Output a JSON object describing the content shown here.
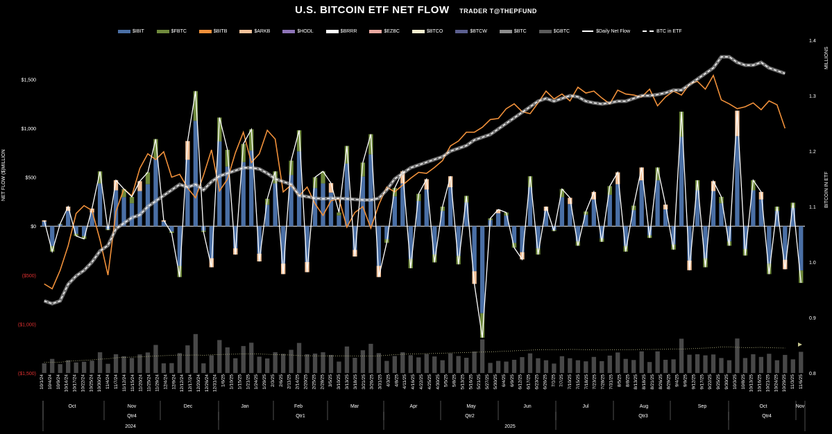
{
  "chart_data": {
    "type": "bar",
    "title": "U.S. BITCOIN ETF NET FLOW",
    "subtitle": "TRADER T@THEPFUND",
    "ylabel": "NET FLOW ($)MILLION",
    "y2label": "BITCOIN IN ETF",
    "y2unit": "MILLIONS",
    "ylim": [
      -1500,
      1900
    ],
    "y2lim": [
      0.8,
      1.4
    ],
    "yticks": [
      "$1,500",
      "$1,000",
      "$500",
      "$0",
      "($500)",
      "($1,000)",
      "($1,500)"
    ],
    "ytick_values": [
      1500,
      1000,
      500,
      0,
      -500,
      -1000,
      -1500
    ],
    "y2ticks": [
      "1.4",
      "1.3",
      "1.2",
      "1.1",
      "1.0",
      "0.9",
      "0.8"
    ],
    "y2tick_values": [
      1.4,
      1.3,
      1.2,
      1.1,
      1.0,
      0.9,
      0.8
    ],
    "legend": [
      "$IBIT",
      "$FBTC",
      "$BITB",
      "$ARKB",
      "$HODL",
      "$BRRR",
      "$EZBC",
      "$BTCO",
      "$BTCW",
      "$BTC",
      "$GBTC",
      "$Daily Net Flow",
      "BTC in ETF"
    ],
    "legend_colors": [
      "#4a6fa5",
      "#6f8a3c",
      "#f0903a",
      "#f3c29a",
      "#8e74b8",
      "#ffffff",
      "#e8a8a0",
      "#f7f0d0",
      "#5b5f8f",
      "#8c8c8c",
      "#5a5a5a",
      "#ffffff",
      "#ffffff"
    ],
    "legend_placement": "top",
    "date_labels": [
      "10/1/24",
      "10/4/24",
      "10/9/24",
      "10/14/24",
      "10/17/24",
      "10/22/24",
      "10/25/24",
      "10/30/24",
      "11/4/24",
      "11/7/24",
      "11/12/24",
      "11/15/24",
      "11/20/24",
      "11/25/24",
      "11/29/24",
      "12/4/24",
      "12/9/24",
      "12/12/24",
      "12/17/24",
      "12/20/24",
      "12/26/24",
      "12/31/24",
      "1/6/25",
      "1/10/25",
      "1/15/25",
      "1/21/25",
      "1/24/25",
      "1/29/25",
      "2/3/25",
      "2/6/25",
      "2/11/25",
      "2/14/25",
      "2/20/25",
      "2/25/25",
      "2/28/25",
      "3/5/25",
      "3/10/25",
      "3/13/25",
      "3/18/25",
      "3/21/25",
      "3/26/25",
      "3/31/25",
      "4/3/25",
      "4/8/25",
      "4/11/25",
      "4/16/25",
      "4/22/25",
      "4/25/25",
      "4/30/25",
      "5/5/25",
      "5/8/25",
      "5/13/25",
      "5/16/25",
      "5/21/25",
      "5/27/25",
      "5/30/25",
      "6/4/25",
      "6/9/25",
      "6/12/25",
      "6/17/25",
      "6/23/25",
      "6/26/25",
      "7/1/25",
      "7/7/25",
      "7/10/25",
      "7/15/25",
      "7/18/25",
      "7/23/25",
      "7/28/25",
      "7/31/25",
      "8/5/25",
      "8/8/25",
      "8/13/25",
      "8/18/25",
      "8/21/25",
      "8/26/25",
      "8/29/25",
      "9/4/25",
      "9/9/25",
      "9/12/25",
      "9/17/25",
      "9/22/25",
      "9/25/25",
      "9/30/25",
      "10/3/25",
      "10/8/25",
      "10/13/25",
      "10/16/25",
      "10/21/25",
      "10/24/25",
      "10/29/25",
      "11/3/25",
      "11/6/25"
    ],
    "months": [
      "Oct",
      "Nov",
      "Dec",
      "Jan",
      "Feb",
      "Mar",
      "Apr",
      "May",
      "Jun",
      "Jul",
      "Aug",
      "Sep",
      "Oct",
      "Nov"
    ],
    "quarters": [
      "Qtr4",
      "Qtr1",
      "Qtr2",
      "Qtr3",
      "Qtr4"
    ],
    "years": [
      "2024",
      "2025"
    ],
    "series": [
      {
        "name": "$Daily Net Flow",
        "values": [
          60,
          -260,
          25,
          200,
          -100,
          -130,
          180,
          560,
          -40,
          470,
          380,
          300,
          460,
          550,
          890,
          60,
          -70,
          -520,
          870,
          1380,
          -60,
          -420,
          1110,
          780,
          -290,
          840,
          990,
          -360,
          280,
          560,
          -490,
          670,
          980,
          -470,
          500,
          560,
          440,
          140,
          820,
          -310,
          650,
          940,
          -520,
          -170,
          390,
          560,
          -430,
          330,
          480,
          -370,
          200,
          510,
          -390,
          310,
          -590,
          -1140,
          80,
          170,
          140,
          -220,
          -340,
          510,
          -290,
          200,
          -50,
          380,
          290,
          -200,
          150,
          350,
          -160,
          410,
          550,
          -260,
          210,
          600,
          -120,
          600,
          220,
          -240,
          1170,
          -450,
          470,
          -420,
          460,
          300,
          -200,
          1180,
          -300,
          470,
          350,
          -490,
          200,
          -440,
          240,
          -580
        ]
      },
      {
        "name": "$BITB",
        "values": [
          -590,
          -640,
          -450,
          -200,
          130,
          210,
          160,
          -140,
          -500,
          150,
          380,
          310,
          590,
          740,
          680,
          760,
          500,
          530,
          390,
          290,
          520,
          780,
          360,
          480,
          750,
          960,
          650,
          740,
          980,
          890,
          350,
          420,
          310,
          400,
          230,
          110,
          260,
          280,
          -10,
          140,
          200,
          -20,
          220,
          400,
          350,
          420,
          490,
          550,
          540,
          600,
          670,
          820,
          870,
          960,
          960,
          1010,
          1090,
          1100,
          1200,
          1250,
          1170,
          1150,
          1260,
          1380,
          1300,
          1350,
          1280,
          1420,
          1360,
          1380,
          1310,
          1250,
          1390,
          1350,
          1340,
          1320,
          1400,
          1230,
          1320,
          1380,
          1340,
          1450,
          1480,
          1400,
          1540,
          1290,
          1250,
          1200,
          1220,
          1260,
          1190,
          1280,
          1240,
          1000
        ]
      },
      {
        "name": "BTC in ETF",
        "values": [
          0.93,
          0.925,
          0.93,
          0.96,
          0.975,
          0.985,
          1.0,
          1.02,
          1.03,
          1.06,
          1.07,
          1.08,
          1.085,
          1.1,
          1.11,
          1.12,
          1.13,
          1.14,
          1.135,
          1.14,
          1.13,
          1.145,
          1.155,
          1.16,
          1.165,
          1.17,
          1.17,
          1.168,
          1.16,
          1.15,
          1.145,
          1.14,
          1.12,
          1.118,
          1.115,
          1.114,
          1.115,
          1.115,
          1.114,
          1.113,
          1.112,
          1.112,
          1.115,
          1.13,
          1.15,
          1.16,
          1.17,
          1.175,
          1.18,
          1.185,
          1.19,
          1.2,
          1.205,
          1.21,
          1.22,
          1.225,
          1.23,
          1.24,
          1.25,
          1.26,
          1.27,
          1.28,
          1.29,
          1.295,
          1.29,
          1.295,
          1.3,
          1.298,
          1.29,
          1.287,
          1.285,
          1.287,
          1.29,
          1.29,
          1.295,
          1.3,
          1.3,
          1.302,
          1.305,
          1.31,
          1.31,
          1.32,
          1.33,
          1.34,
          1.35,
          1.37,
          1.37,
          1.36,
          1.355,
          1.355,
          1.36,
          1.35,
          1.345,
          1.34
        ]
      }
    ]
  }
}
